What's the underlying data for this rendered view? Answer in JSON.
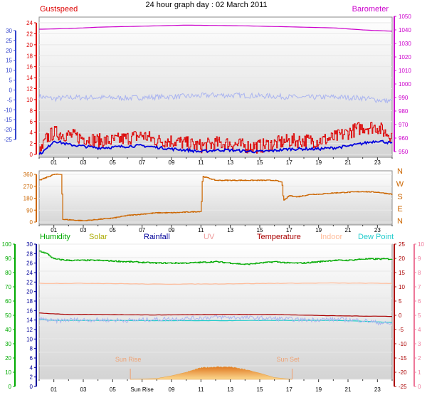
{
  "title": "24 hour graph day : 02 March 2011",
  "colors": {
    "gust": "#dd0000",
    "wind": "#0000dd",
    "temp_axis": "#3344cc",
    "baro": "#cc00cc",
    "dir": "#cc6600",
    "humidity": "#00aa00",
    "solar": "#aaaa00",
    "rainfall": "#000099",
    "uv": "#ee9999",
    "temperature": "#aa0000",
    "indoor": "#ffbb99",
    "dewpoint": "#22cccc",
    "sun": "#f0a040",
    "lav": "#aab4f0"
  },
  "chart_data": [
    {
      "type": "line",
      "legend": {
        "left": "Gustspeed",
        "right": "Barometer"
      },
      "x_ticks": [
        "01",
        "03",
        "05",
        "07",
        "09",
        "11",
        "13",
        "15",
        "17",
        "19",
        "21",
        "23"
      ],
      "y_far_left_ticks": [
        "30",
        "25",
        "20",
        "15",
        "10",
        "5",
        "0",
        "-5",
        "-10",
        "-15",
        "-20",
        "-25"
      ],
      "y_left_ticks": [
        "24",
        "22",
        "20",
        "18",
        "16",
        "14",
        "12",
        "10",
        "8",
        "6",
        "4",
        "2",
        "0"
      ],
      "y_right_ticks": [
        "1050",
        "1040",
        "1030",
        "1020",
        "1010",
        "1000",
        "990",
        "980",
        "970",
        "960",
        "950"
      ],
      "ylim_left": [
        0,
        25
      ],
      "ylim_right": [
        945,
        1050
      ],
      "ylim_far_left": [
        -25,
        35
      ],
      "series": [
        {
          "role": "barometer",
          "axis": "right",
          "x": [
            0,
            2,
            4,
            6,
            8,
            10,
            12,
            14,
            16,
            18,
            20,
            22,
            24
          ],
          "values": [
            1040.5,
            1041,
            1042,
            1042.5,
            1043,
            1043.5,
            1043.3,
            1043,
            1042.5,
            1042,
            1041.5,
            1040,
            1039
          ]
        },
        {
          "role": "temperature",
          "axis": "far_left",
          "x": [
            0,
            1,
            2,
            4,
            6,
            8,
            10,
            12,
            14,
            16,
            18,
            20,
            22,
            23,
            24
          ],
          "values": [
            -2.5,
            -3.5,
            -3,
            -3,
            -3.2,
            -2.8,
            -2.5,
            -2,
            -2.2,
            -2.5,
            -3,
            -2.8,
            -3.2,
            -4,
            -4.5
          ]
        },
        {
          "role": "gust",
          "axis": "left",
          "x": [
            0,
            0.5,
            1,
            2,
            3,
            4,
            5,
            6,
            7,
            8,
            9,
            10,
            11,
            12,
            13,
            14,
            15,
            16,
            17,
            18,
            19,
            20,
            21,
            22,
            23,
            23.5,
            24
          ],
          "values": [
            0,
            3,
            4,
            3.5,
            3,
            2.5,
            2.5,
            3,
            3.5,
            2.5,
            2.5,
            2,
            1.5,
            2,
            2,
            1.5,
            1.5,
            2,
            2.5,
            2.5,
            2.5,
            3,
            4,
            5,
            5,
            4,
            3.5
          ]
        },
        {
          "role": "wind",
          "axis": "left",
          "x": [
            0,
            0.5,
            1,
            2,
            3,
            4,
            5,
            6,
            7,
            8,
            9,
            10,
            11,
            12,
            13,
            14,
            15,
            16,
            17,
            18,
            19,
            20,
            21,
            22,
            23,
            23.5,
            24
          ],
          "values": [
            0,
            1,
            2.5,
            1.8,
            1.5,
            1.2,
            1.3,
            1.5,
            1.6,
            1.3,
            1,
            0.8,
            0.5,
            0.8,
            0.8,
            0.6,
            0.5,
            0.7,
            1,
            1,
            1,
            1.2,
            1.5,
            2,
            2.5,
            2.3,
            2
          ]
        }
      ]
    },
    {
      "type": "line",
      "x_ticks": [
        "01",
        "03",
        "05",
        "07",
        "09",
        "11",
        "13",
        "15",
        "17",
        "19",
        "21",
        "23"
      ],
      "y_left_ticks": [
        "360",
        "270",
        "180",
        "90",
        "0"
      ],
      "y_right_ticks": [
        "N",
        "W",
        "S",
        "E",
        "N"
      ],
      "ylim": [
        0,
        360
      ],
      "series": [
        {
          "role": "direction",
          "x": [
            0,
            1,
            1.5,
            1.6,
            3,
            4,
            5,
            6,
            7,
            8,
            9,
            10,
            11,
            11.1,
            12,
            15,
            16,
            16.5,
            16.6,
            17,
            17.5,
            18,
            18.5,
            19,
            20,
            21,
            22,
            23,
            24
          ],
          "values": [
            315,
            360,
            360,
            20,
            10,
            20,
            30,
            50,
            60,
            70,
            70,
            75,
            80,
            345,
            315,
            315,
            315,
            300,
            160,
            200,
            190,
            200,
            210,
            210,
            220,
            225,
            230,
            225,
            210
          ]
        }
      ]
    },
    {
      "type": "line",
      "legend": [
        "Humidity",
        "Solar",
        "Rainfall",
        "UV",
        "Temperature",
        "Indoor",
        "Dew Point"
      ],
      "x_ticks": [
        "01",
        "03",
        "05",
        "Sun Rise",
        "09",
        "11",
        "13",
        "15",
        "17",
        "19",
        "21",
        "23"
      ],
      "annotations": [
        "Sun Rise",
        "Sun Set"
      ],
      "y_humidity_ticks": [
        "100",
        "90",
        "80",
        "70",
        "60",
        "50",
        "40",
        "30",
        "20",
        "10",
        "0"
      ],
      "y_rain_ticks": [
        "30",
        "28",
        "26",
        "24",
        "22",
        "20",
        "18",
        "16",
        "14",
        "12",
        "10",
        "8",
        "6",
        "4",
        "2",
        "0"
      ],
      "y_temp_ticks": [
        "25",
        "20",
        "15",
        "10",
        "5",
        "0",
        "-5",
        "-10",
        "-15",
        "-20",
        "-25"
      ],
      "y_uv_ticks": [
        "10",
        "9",
        "8",
        "7",
        "6",
        "5",
        "4",
        "3",
        "2",
        "1",
        "0"
      ],
      "ylim_humidity": [
        0,
        100
      ],
      "ylim_temperature": [
        -25,
        25
      ],
      "ylim_solar": [
        0,
        1
      ],
      "series": [
        {
          "role": "humidity",
          "axis": "humidity",
          "x": [
            0,
            0.5,
            1,
            2,
            4,
            6,
            8,
            10,
            12,
            13,
            14,
            15,
            16,
            17,
            18,
            19,
            20,
            21,
            22,
            23,
            24
          ],
          "values": [
            95,
            93,
            89,
            88,
            88,
            87,
            86,
            86,
            87,
            86,
            85,
            86,
            87,
            86,
            86,
            87,
            88,
            88,
            89,
            89,
            89
          ]
        },
        {
          "role": "indoor",
          "axis": "temperature",
          "x": [
            0,
            4,
            8,
            12,
            16,
            20,
            24
          ],
          "values": [
            10.5,
            10.5,
            10.2,
            10.3,
            10.5,
            10.6,
            10.5
          ]
        },
        {
          "role": "temperature",
          "axis": "temperature",
          "x": [
            0,
            2,
            4,
            8,
            12,
            16,
            20,
            24
          ],
          "values": [
            -0.5,
            -1,
            -1,
            -1.2,
            -1,
            -1,
            -1.5,
            -1.7
          ]
        },
        {
          "role": "dewpoint",
          "axis": "temperature",
          "x": [
            0,
            1,
            4,
            8,
            12,
            16,
            20,
            22,
            24
          ],
          "values": [
            -2.8,
            -3.2,
            -3.2,
            -3.3,
            -3.3,
            -3.2,
            -3.2,
            -3.5,
            -4
          ]
        },
        {
          "role": "temp_noisy",
          "axis": "temperature",
          "x": [
            0,
            1,
            2,
            4,
            6,
            8,
            10,
            12,
            14,
            16,
            18,
            20,
            22,
            23,
            24
          ],
          "values": [
            -2.5,
            -3.5,
            -3,
            -3,
            -3.2,
            -2.8,
            -2.5,
            -2,
            -2.2,
            -2.5,
            -3,
            -2.8,
            -3.2,
            -4,
            -4.5
          ]
        },
        {
          "role": "solar",
          "axis": "solar",
          "x": [
            6.2,
            7,
            8,
            9,
            10,
            11,
            12,
            13,
            14,
            15,
            16,
            17.2
          ],
          "values": [
            0,
            0.02,
            0.05,
            0.2,
            0.4,
            0.65,
            0.7,
            0.7,
            0.55,
            0.35,
            0.1,
            0
          ]
        }
      ]
    }
  ]
}
